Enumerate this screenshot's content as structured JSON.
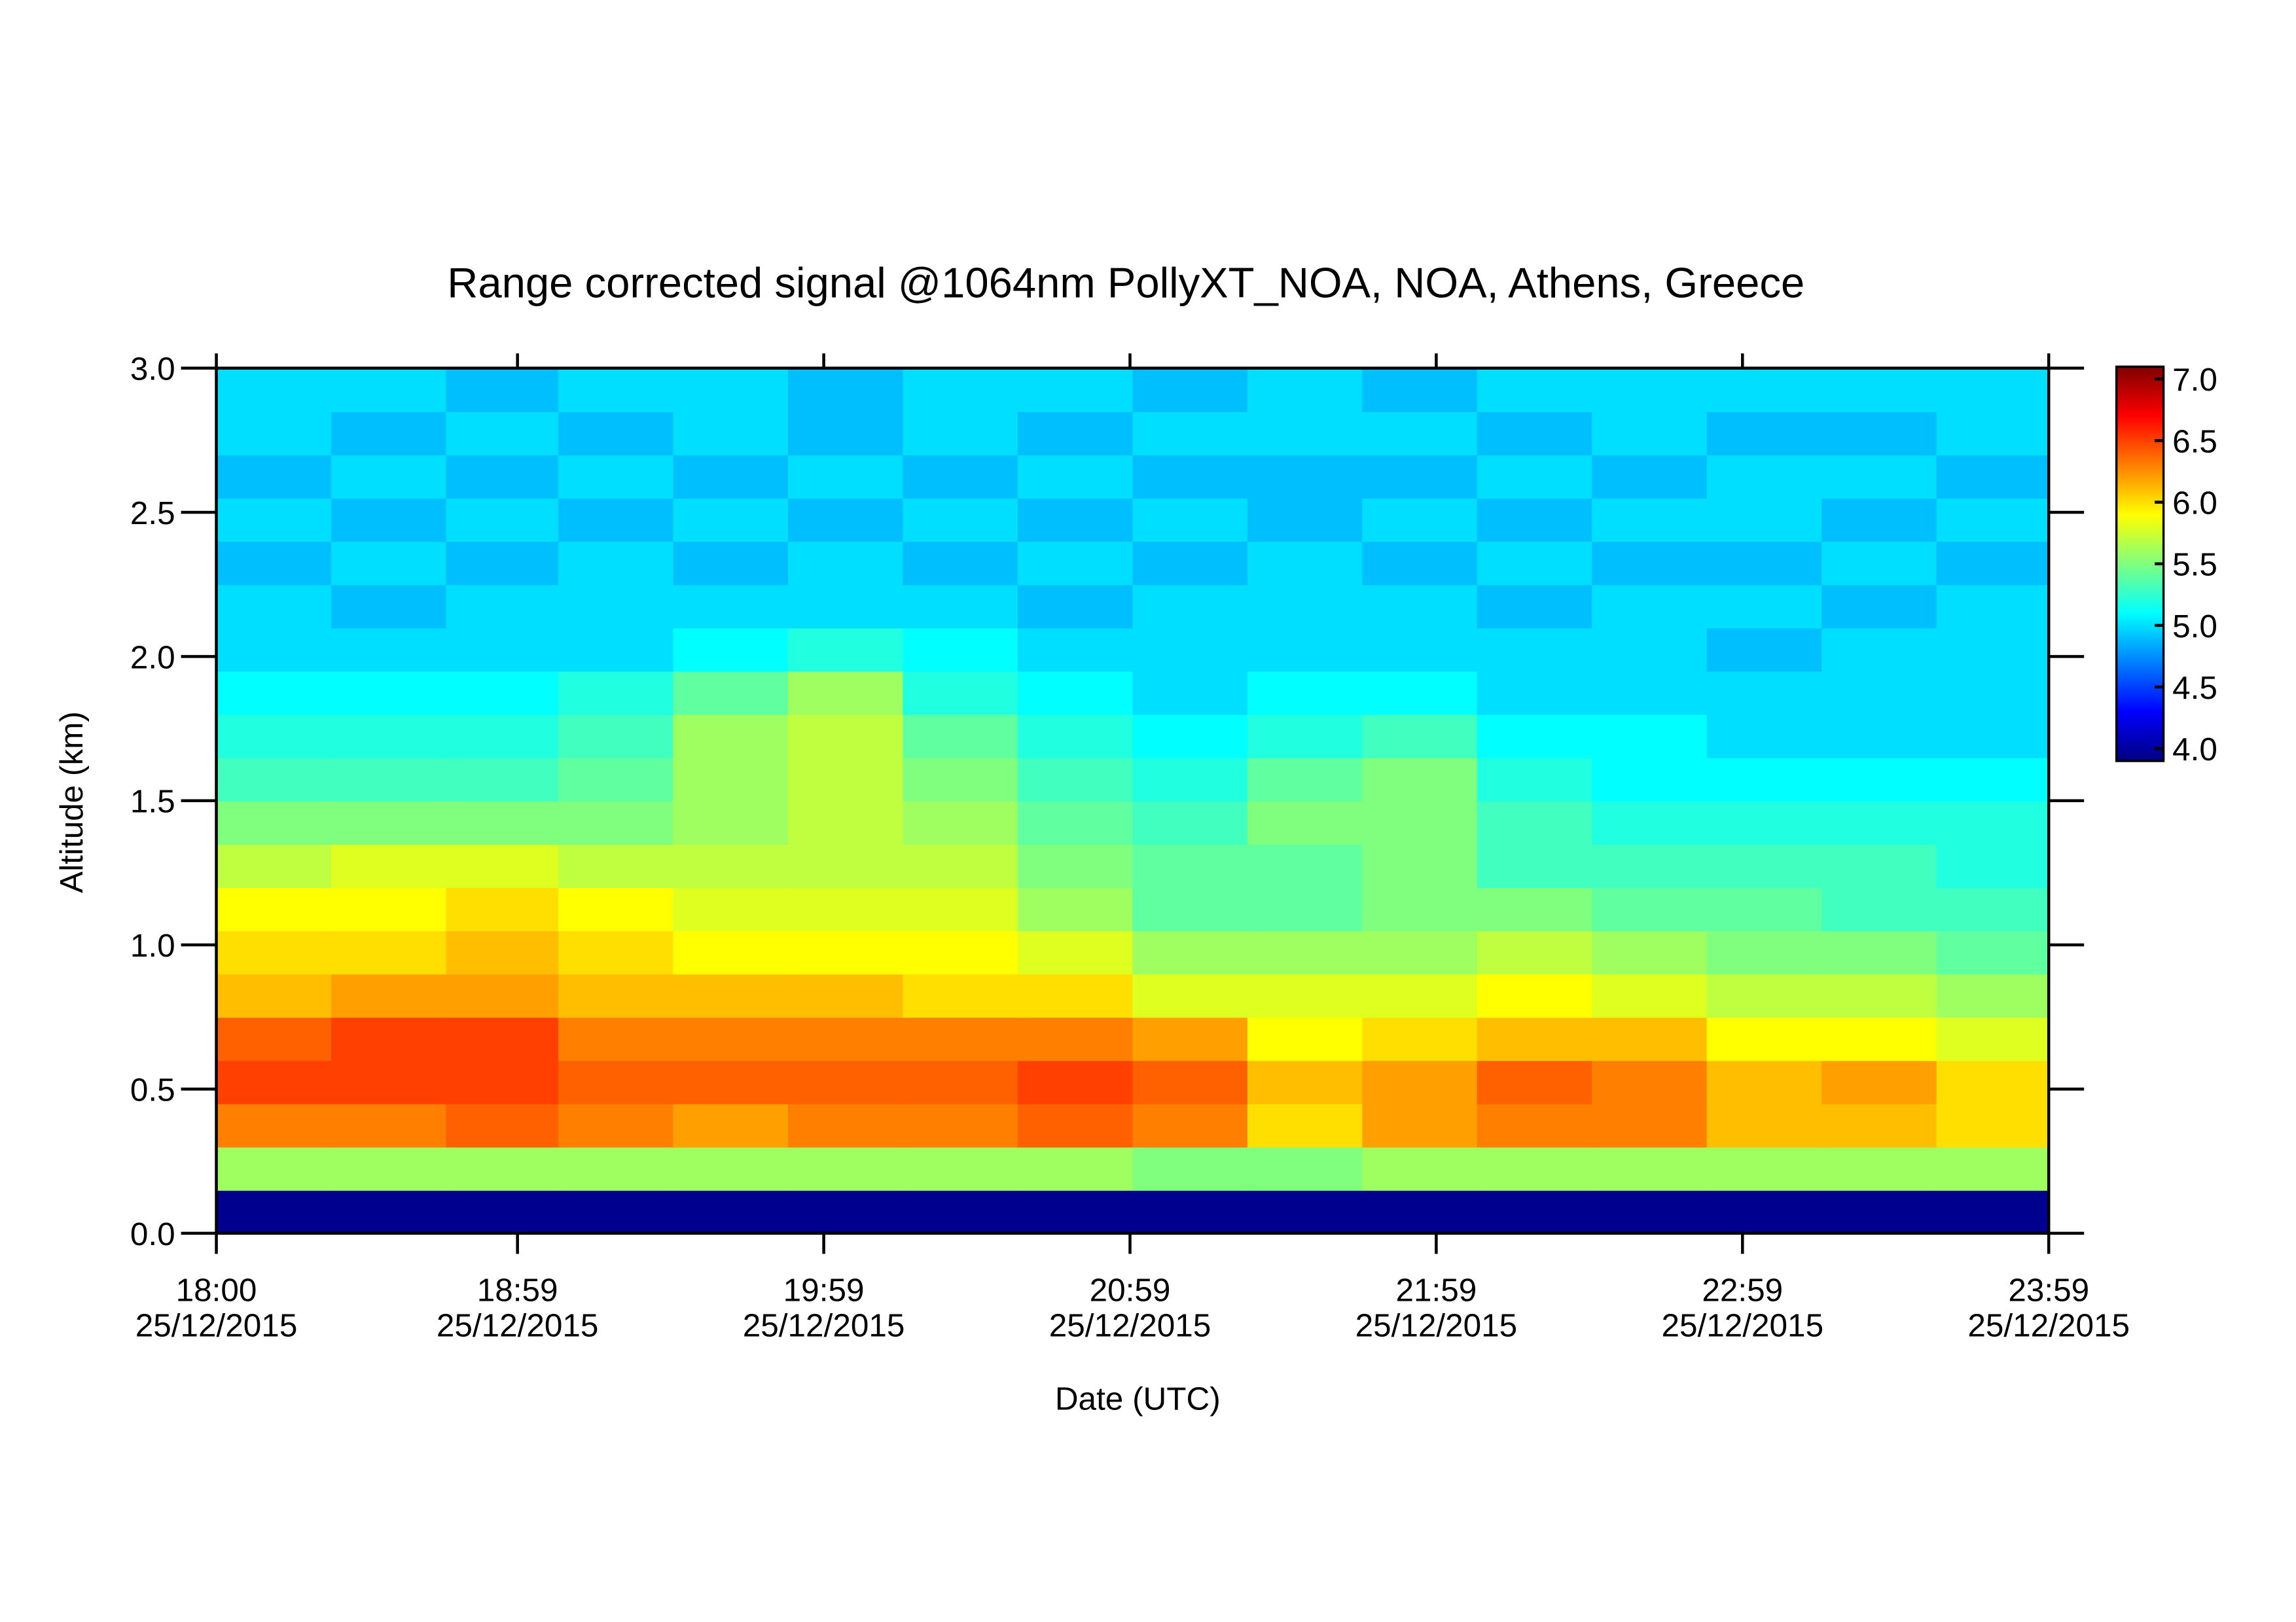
{
  "chart_data": {
    "type": "heatmap",
    "title": "Range corrected signal @1064nm  PollyXT_NOA, NOA, Athens, Greece",
    "xlabel": "Date (UTC)",
    "ylabel": "Altitude (km)",
    "colormap": "jet",
    "x": [
      "2015-12-25T18:11",
      "2015-12-25T18:34",
      "2015-12-25T18:56",
      "2015-12-25T19:18",
      "2015-12-25T19:41",
      "2015-12-25T20:03",
      "2015-12-25T20:26",
      "2015-12-25T20:48",
      "2015-12-25T21:11",
      "2015-12-25T21:33",
      "2015-12-25T21:56",
      "2015-12-25T22:18",
      "2015-12-25T22:41",
      "2015-12-25T23:03",
      "2015-12-25T23:26",
      "2015-12-25T23:48"
    ],
    "y": [
      0.075,
      0.225,
      0.375,
      0.525,
      0.675,
      0.825,
      0.975,
      1.125,
      1.275,
      1.425,
      1.575,
      1.725,
      1.875,
      2.025,
      2.175,
      2.325,
      2.475,
      2.625,
      2.775,
      2.925
    ],
    "values": [
      [
        3.95,
        3.95,
        3.95,
        3.95,
        3.95,
        3.95,
        3.95,
        3.95,
        3.95,
        3.95,
        3.95,
        3.95,
        3.95,
        3.95,
        3.95,
        3.95
      ],
      [
        5.6,
        5.6,
        5.6,
        5.6,
        5.6,
        5.6,
        5.6,
        5.6,
        5.5,
        5.5,
        5.6,
        5.6,
        5.6,
        5.6,
        5.6,
        5.6
      ],
      [
        6.3,
        6.3,
        6.4,
        6.3,
        6.2,
        6.3,
        6.3,
        6.4,
        6.3,
        6.0,
        6.2,
        6.3,
        6.3,
        6.1,
        6.1,
        6.0
      ],
      [
        6.5,
        6.5,
        6.5,
        6.4,
        6.4,
        6.4,
        6.4,
        6.5,
        6.4,
        6.1,
        6.2,
        6.4,
        6.3,
        6.1,
        6.2,
        6.0
      ],
      [
        6.4,
        6.5,
        6.5,
        6.3,
        6.3,
        6.3,
        6.3,
        6.3,
        6.2,
        5.9,
        6.0,
        6.1,
        6.1,
        5.9,
        5.9,
        5.8
      ],
      [
        6.1,
        6.2,
        6.2,
        6.1,
        6.1,
        6.1,
        6.0,
        6.0,
        5.8,
        5.8,
        5.8,
        5.9,
        5.8,
        5.7,
        5.7,
        5.6
      ],
      [
        6.0,
        6.0,
        6.1,
        6.0,
        5.9,
        5.9,
        5.9,
        5.8,
        5.6,
        5.6,
        5.6,
        5.7,
        5.6,
        5.5,
        5.5,
        5.4
      ],
      [
        5.9,
        5.9,
        6.0,
        5.9,
        5.8,
        5.8,
        5.8,
        5.6,
        5.4,
        5.4,
        5.5,
        5.5,
        5.4,
        5.4,
        5.3,
        5.3
      ],
      [
        5.7,
        5.8,
        5.8,
        5.7,
        5.7,
        5.7,
        5.7,
        5.5,
        5.4,
        5.4,
        5.5,
        5.3,
        5.3,
        5.3,
        5.3,
        5.2
      ],
      [
        5.5,
        5.5,
        5.5,
        5.5,
        5.6,
        5.7,
        5.6,
        5.4,
        5.3,
        5.5,
        5.5,
        5.3,
        5.2,
        5.2,
        5.2,
        5.2
      ],
      [
        5.3,
        5.3,
        5.3,
        5.4,
        5.6,
        5.7,
        5.5,
        5.3,
        5.2,
        5.4,
        5.5,
        5.2,
        5.1,
        5.1,
        5.1,
        5.1
      ],
      [
        5.2,
        5.2,
        5.2,
        5.3,
        5.6,
        5.7,
        5.4,
        5.2,
        5.1,
        5.2,
        5.3,
        5.1,
        5.1,
        5.0,
        5.0,
        5.0
      ],
      [
        5.1,
        5.1,
        5.1,
        5.2,
        5.4,
        5.6,
        5.2,
        5.1,
        5.0,
        5.1,
        5.1,
        5.0,
        5.0,
        5.0,
        5.0,
        5.0
      ],
      [
        5.0,
        5.0,
        5.0,
        5.0,
        5.1,
        5.2,
        5.1,
        5.0,
        5.0,
        5.0,
        5.0,
        5.0,
        5.0,
        4.9,
        5.0,
        5.0
      ],
      [
        5.0,
        4.9,
        5.0,
        5.0,
        5.0,
        5.0,
        5.0,
        4.9,
        5.0,
        5.0,
        5.0,
        4.9,
        5.0,
        5.0,
        4.9,
        5.0
      ],
      [
        4.9,
        5.0,
        4.9,
        5.0,
        4.9,
        5.0,
        4.9,
        5.0,
        4.9,
        5.0,
        4.9,
        5.0,
        4.9,
        4.9,
        5.0,
        4.9
      ],
      [
        5.0,
        4.9,
        5.0,
        4.9,
        5.0,
        4.9,
        5.0,
        4.9,
        5.0,
        4.9,
        5.0,
        4.9,
        5.0,
        5.0,
        4.9,
        5.0
      ],
      [
        4.9,
        5.0,
        4.9,
        5.0,
        4.9,
        5.0,
        4.9,
        5.0,
        4.9,
        4.9,
        4.9,
        5.0,
        4.9,
        5.0,
        5.0,
        4.9
      ],
      [
        5.0,
        4.9,
        5.0,
        4.9,
        5.0,
        4.9,
        5.0,
        4.9,
        5.0,
        5.0,
        5.0,
        4.9,
        5.0,
        4.9,
        4.9,
        5.0
      ],
      [
        5.0,
        5.0,
        4.9,
        5.0,
        5.0,
        4.9,
        5.0,
        5.0,
        4.9,
        5.0,
        4.9,
        5.0,
        5.0,
        5.0,
        5.0,
        5.0
      ]
    ],
    "xlim": [
      "2015-12-25T18:00",
      "2015-12-25T23:59"
    ],
    "xticks": [
      {
        "value": "2015-12-25T18:00",
        "label": [
          "18:00",
          "25/12/2015"
        ]
      },
      {
        "value": "2015-12-25T18:59",
        "label": [
          "18:59",
          "25/12/2015"
        ]
      },
      {
        "value": "2015-12-25T19:59",
        "label": [
          "19:59",
          "25/12/2015"
        ]
      },
      {
        "value": "2015-12-25T20:59",
        "label": [
          "20:59",
          "25/12/2015"
        ]
      },
      {
        "value": "2015-12-25T21:59",
        "label": [
          "21:59",
          "25/12/2015"
        ]
      },
      {
        "value": "2015-12-25T22:59",
        "label": [
          "22:59",
          "25/12/2015"
        ]
      },
      {
        "value": "2015-12-25T23:59",
        "label": [
          "23:59",
          "25/12/2015"
        ]
      }
    ],
    "ylim": [
      0,
      3
    ],
    "yticks": [
      {
        "value": 0,
        "label": "0.0"
      },
      0.5,
      {
        "value": 1,
        "label": "1.0"
      },
      1.5,
      {
        "value": 2,
        "label": "2.0"
      },
      2.5,
      {
        "value": 3,
        "label": "3.0"
      }
    ],
    "zlim": [
      3.9,
      7.1
    ],
    "zticks": [
      {
        "value": 4,
        "label": "4.0"
      },
      4.5,
      {
        "value": 5,
        "label": "5.0"
      },
      5.5,
      {
        "value": 6,
        "label": "6.0"
      },
      6.5,
      {
        "value": 7,
        "label": "7.0"
      }
    ]
  }
}
